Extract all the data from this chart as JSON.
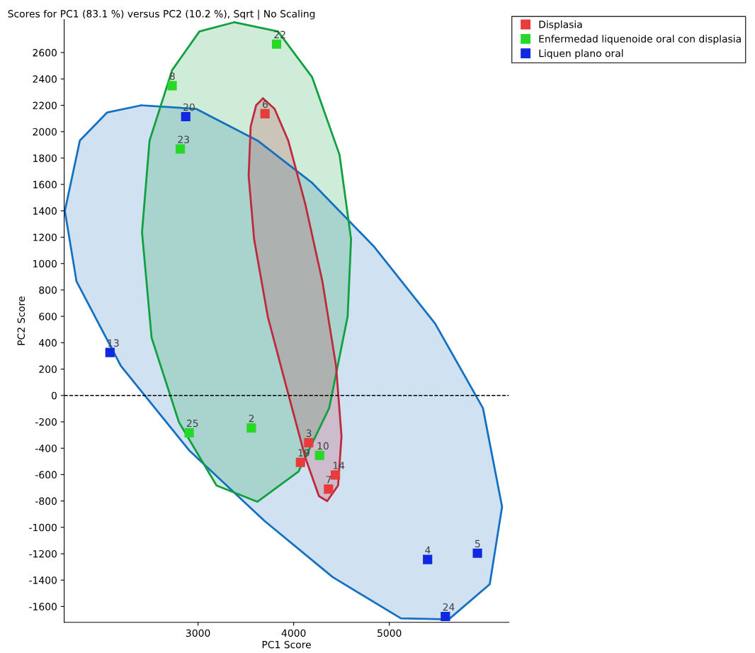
{
  "chart_data": {
    "type": "scatter",
    "title": "Scores for PC1 (83.1 %) versus PC2 (10.2 %), Sqrt | No Scaling",
    "xlabel": "PC1 Score",
    "ylabel": "PC2 Score",
    "xlim": [
      1600,
      6250
    ],
    "ylim": [
      -1720,
      2850
    ],
    "xticks": [
      3000,
      4000,
      5000
    ],
    "yticks": [
      -1600,
      -1400,
      -1200,
      -1000,
      -800,
      -600,
      -400,
      -200,
      0,
      200,
      400,
      600,
      800,
      1000,
      1200,
      1400,
      1600,
      1800,
      2000,
      2200,
      2400,
      2600
    ],
    "grid": false,
    "legend": "top right",
    "marker": "square",
    "ref_lines": [
      {
        "axis": "y",
        "value": 0,
        "color": "#000000",
        "line_style": "dashed"
      }
    ],
    "series": [
      {
        "type": "area",
        "marker": "none",
        "color": "#1470c0",
        "x": [
          2407,
          2979,
          3621,
          4193,
          4836,
          5479,
          5979,
          6179,
          6050,
          5621,
          5121,
          4407,
          3693,
          2907,
          2193,
          1729,
          1607,
          1764,
          2050
        ],
        "values": [
          2200,
          2173,
          1933,
          1612,
          1132,
          545,
          -96,
          -844,
          -1431,
          -1698,
          -1690,
          -1377,
          -950,
          -416,
          224,
          865,
          1399,
          1933,
          2146
        ]
      },
      {
        "type": "area",
        "marker": "none",
        "color": "#10a040",
        "x": [
          3379,
          3836,
          4193,
          4479,
          4600,
          4564,
          4371,
          4050,
          3621,
          3193,
          2800,
          2514,
          2414,
          2493,
          2729,
          3014
        ],
        "values": [
          2830,
          2760,
          2413,
          1826,
          1185,
          598,
          -96,
          -577,
          -806,
          -683,
          -203,
          438,
          1239,
          1933,
          2467,
          2760
        ]
      },
      {
        "type": "area",
        "marker": "none",
        "color": "#c0283c",
        "x": [
          3679,
          3800,
          3943,
          4121,
          4300,
          4443,
          4500,
          4464,
          4350,
          4264,
          4121,
          3943,
          3729,
          3586,
          3529,
          3550,
          3607
        ],
        "values": [
          2253,
          2173,
          1933,
          1452,
          865,
          224,
          -310,
          -683,
          -801,
          -763,
          -470,
          11,
          598,
          1185,
          1666,
          2039,
          2200
        ]
      },
      {
        "name": "Displasia",
        "color": "#e83c3c",
        "x": [
          3700,
          4157,
          4071,
          4436,
          4364
        ],
        "values": [
          2136,
          -358,
          -507,
          -603,
          -710
        ]
      },
      {
        "name": "Enfermedad liquenoide oral con displasia",
        "color": "#28d828",
        "x": [
          3821,
          2729,
          2814,
          2907,
          3557,
          4271
        ],
        "values": [
          2664,
          2349,
          1869,
          -283,
          -246,
          -454
        ]
      },
      {
        "name": "Liquen plano oral",
        "color": "#1028e0",
        "x": [
          2871,
          2079,
          5400,
          5921,
          5586
        ],
        "values": [
          2114,
          326,
          -1244,
          -1196,
          -1676
        ]
      }
    ],
    "annotations": [
      {
        "text": "6",
        "x": 3700,
        "y": 2136
      },
      {
        "text": "3",
        "x": 4157,
        "y": -358
      },
      {
        "text": "19",
        "x": 4071,
        "y": -507
      },
      {
        "text": "14",
        "x": 4436,
        "y": -603
      },
      {
        "text": "7",
        "x": 4364,
        "y": -710
      },
      {
        "text": "22",
        "x": 3821,
        "y": 2664
      },
      {
        "text": "8",
        "x": 2729,
        "y": 2349
      },
      {
        "text": "23",
        "x": 2814,
        "y": 1869
      },
      {
        "text": "25",
        "x": 2907,
        "y": -283
      },
      {
        "text": "2",
        "x": 3557,
        "y": -246
      },
      {
        "text": "10",
        "x": 4271,
        "y": -454
      },
      {
        "text": "20",
        "x": 2871,
        "y": 2114
      },
      {
        "text": "13",
        "x": 2079,
        "y": 326
      },
      {
        "text": "4",
        "x": 5400,
        "y": -1244
      },
      {
        "text": "5",
        "x": 5921,
        "y": -1196
      },
      {
        "text": "24",
        "x": 5586,
        "y": -1676
      }
    ]
  }
}
